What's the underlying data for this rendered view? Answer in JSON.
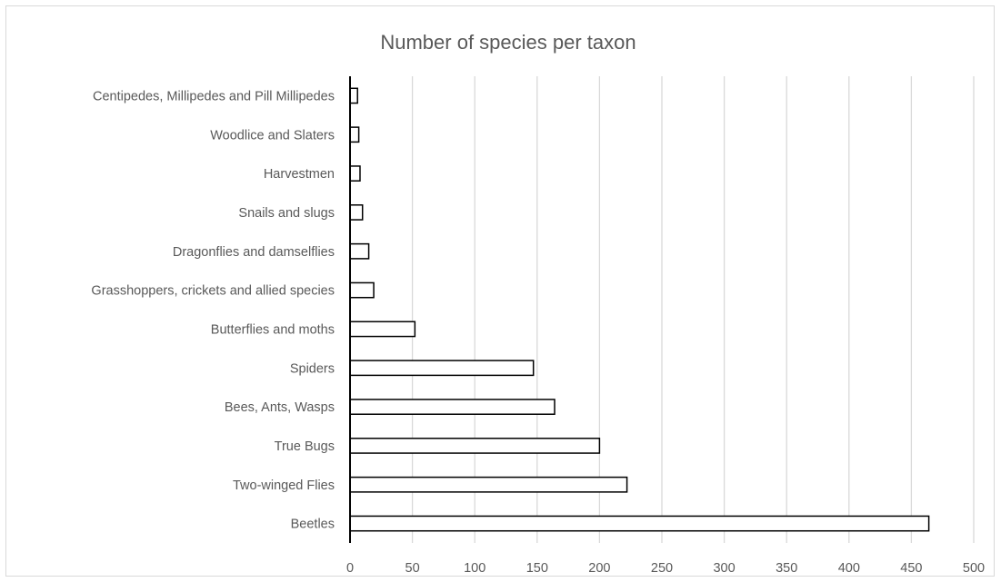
{
  "chart_data": {
    "type": "bar",
    "orientation": "horizontal",
    "title": "Number of species per taxon",
    "categories": [
      "Beetles",
      "Two-winged Flies",
      "True Bugs",
      "Bees, Ants, Wasps",
      "Spiders",
      "Butterflies and moths",
      "Grasshoppers, crickets and allied species",
      "Dragonflies and damselflies",
      "Snails and slugs",
      "Harvestmen",
      "Woodlice and Slaters",
      "Centipedes, Millipedes and Pill Millipedes"
    ],
    "values": [
      464,
      222,
      200,
      164,
      147,
      52,
      19,
      15,
      10,
      8,
      7,
      6
    ],
    "xlabel": "",
    "ylabel": "",
    "xlim": [
      0,
      500
    ],
    "xticks": [
      0,
      50,
      100,
      150,
      200,
      250,
      300,
      350,
      400,
      450,
      500
    ],
    "grid": true,
    "legend": "none",
    "colors": {
      "bar_fill": "#ffffff",
      "bar_stroke": "#000000",
      "grid": "#d9d9d9",
      "text": "#595959"
    }
  }
}
